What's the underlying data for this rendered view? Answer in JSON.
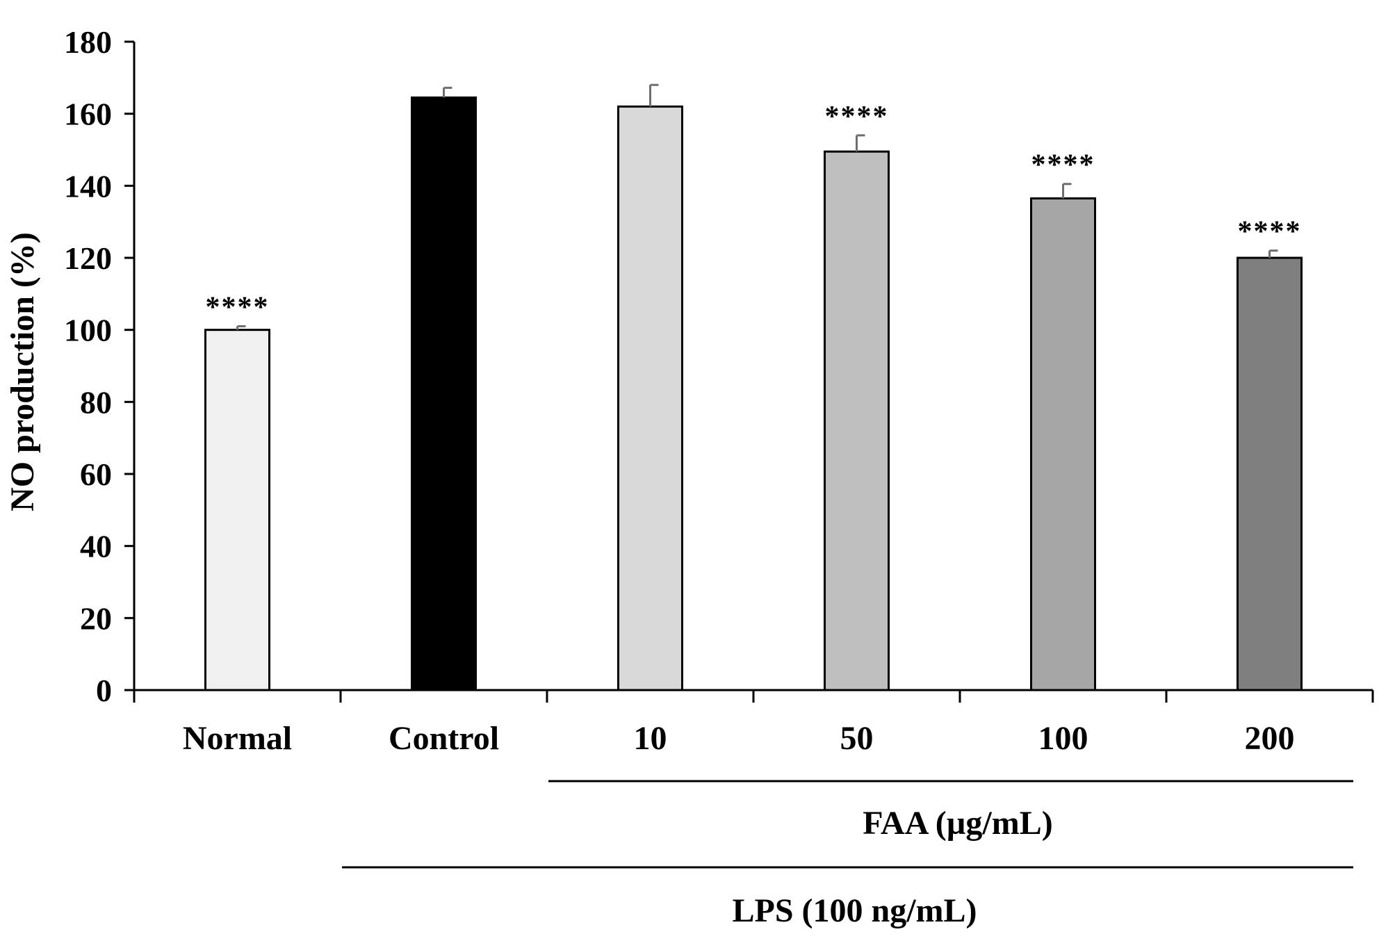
{
  "chart_data": {
    "type": "bar",
    "title": "",
    "xlabel": "",
    "ylabel": "NO production (%)",
    "ylim": [
      0,
      180
    ],
    "yticks": [
      0,
      20,
      40,
      60,
      80,
      100,
      120,
      140,
      160,
      180
    ],
    "categories": [
      "Normal",
      "Control",
      "10",
      "50",
      "100",
      "200"
    ],
    "values": [
      100,
      164.5,
      162,
      149.5,
      136.5,
      120
    ],
    "errors": [
      1,
      2.7,
      6,
      4.5,
      4,
      2
    ],
    "significance": [
      "****",
      "",
      "",
      "****",
      "****",
      "****"
    ],
    "colors": [
      "#f0f0f0",
      "#000000",
      "#d9d9d9",
      "#bfbfbf",
      "#a6a6a6",
      "#7f7f7f"
    ],
    "groups": [
      {
        "label": "FAA (µg/mL)",
        "from": 2,
        "to": 5
      },
      {
        "label": "LPS (100 ng/mL)",
        "from": 1,
        "to": 5
      }
    ],
    "grid": false,
    "legend": "none"
  }
}
